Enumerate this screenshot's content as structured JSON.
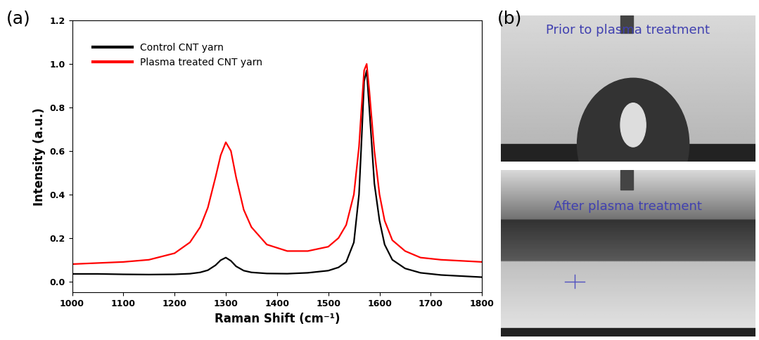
{
  "chart_data": {
    "type": "line",
    "panel_label": "(a)",
    "x_label": "Raman Shift (cm⁻¹)",
    "y_label": "Intensity (a.u.)",
    "x": [
      1000,
      1050,
      1100,
      1150,
      1200,
      1230,
      1250,
      1265,
      1280,
      1290,
      1300,
      1310,
      1320,
      1335,
      1350,
      1380,
      1420,
      1460,
      1500,
      1520,
      1535,
      1550,
      1560,
      1565,
      1570,
      1575,
      1580,
      1590,
      1600,
      1610,
      1625,
      1650,
      1680,
      1720,
      1760,
      1800
    ],
    "series": [
      {
        "name": "Control CNT yarn",
        "color": "#000000",
        "values": [
          0.035,
          0.035,
          0.033,
          0.032,
          0.033,
          0.036,
          0.042,
          0.052,
          0.075,
          0.098,
          0.11,
          0.095,
          0.07,
          0.05,
          0.042,
          0.037,
          0.036,
          0.04,
          0.05,
          0.065,
          0.09,
          0.18,
          0.4,
          0.65,
          0.92,
          0.97,
          0.8,
          0.45,
          0.28,
          0.17,
          0.1,
          0.06,
          0.04,
          0.03,
          0.025,
          0.02
        ]
      },
      {
        "name": "Plasma treated CNT yarn",
        "color": "#ff0000",
        "values": [
          0.08,
          0.085,
          0.09,
          0.1,
          0.13,
          0.18,
          0.25,
          0.34,
          0.48,
          0.58,
          0.64,
          0.6,
          0.48,
          0.33,
          0.25,
          0.17,
          0.14,
          0.14,
          0.16,
          0.2,
          0.26,
          0.4,
          0.62,
          0.8,
          0.97,
          1.0,
          0.88,
          0.6,
          0.4,
          0.28,
          0.19,
          0.14,
          0.11,
          0.1,
          0.095,
          0.09
        ]
      }
    ],
    "xlim": [
      1000,
      1800
    ],
    "xticks": [
      1000,
      1100,
      1200,
      1300,
      1400,
      1500,
      1600,
      1700,
      1800
    ],
    "ylim": [
      -0.05,
      1.2
    ],
    "yticks": [
      {
        "value": 0,
        "label": "0.0"
      },
      {
        "value": 0.2,
        "label": "0.2"
      },
      {
        "value": 0.4,
        "label": "0.4"
      },
      {
        "value": 0.6,
        "label": "0.6"
      },
      {
        "value": 0.8,
        "label": "0.8"
      },
      {
        "value": 1,
        "label": "1.0"
      },
      {
        "value": 1.2,
        "label": "1.2"
      }
    ],
    "legend": "upper left",
    "grid": false
  },
  "images": {
    "panel_label": "(b)",
    "captions": [
      "Prior to plasma treatment",
      "After plasma treatment"
    ]
  }
}
